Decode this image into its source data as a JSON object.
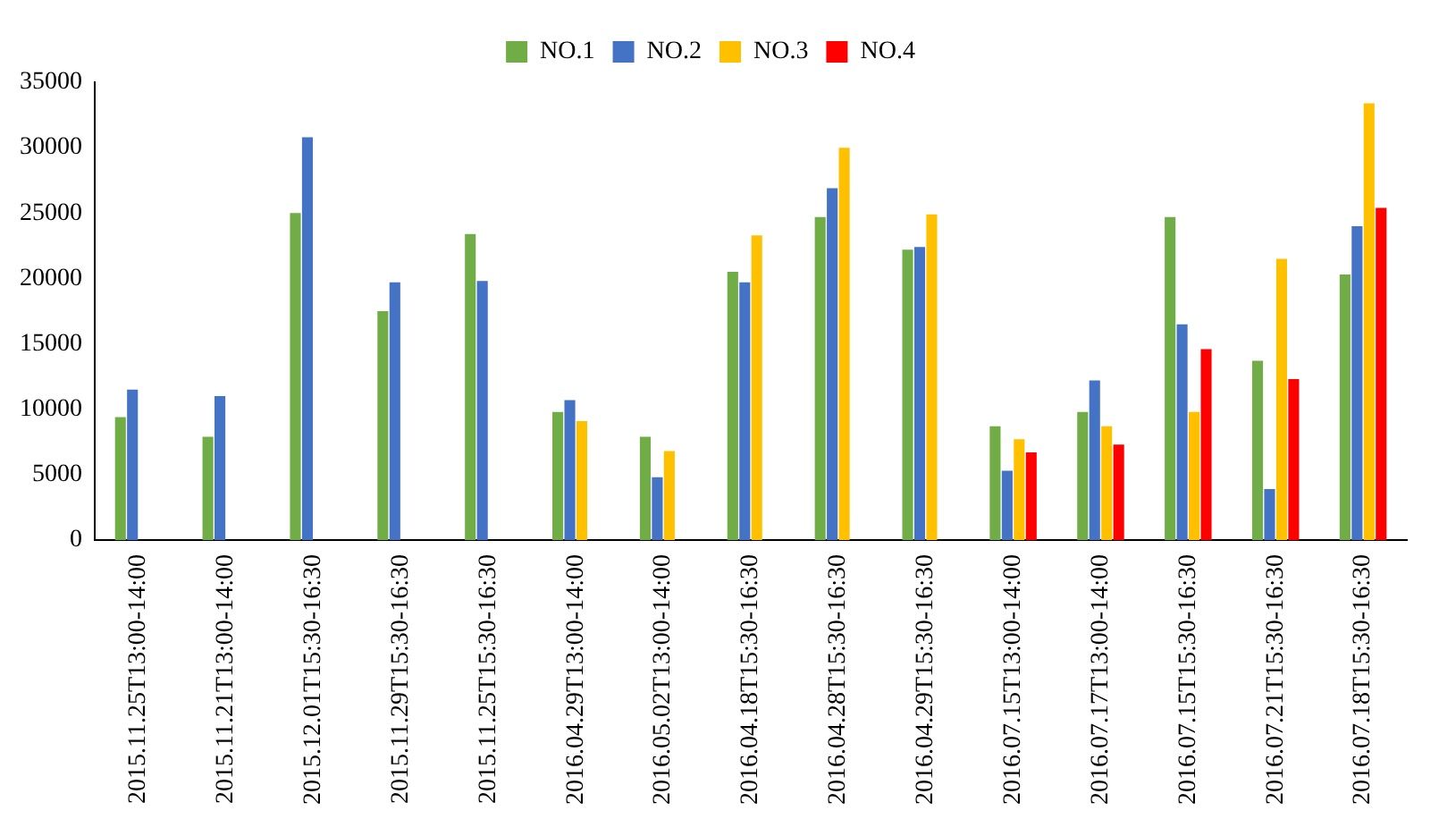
{
  "chart_data": {
    "type": "bar",
    "categories": [
      "2015.11.25T13:00-14:00",
      "2015.11.21T13:00-14:00",
      "2015.12.01T15:30-16:30",
      "2015.11.29T15:30-16:30",
      "2015.11.25T15:30-16:30",
      "2016.04.29T13:00-14:00",
      "2016.05.02T13:00-14:00",
      "2016.04.18T15:30-16:30",
      "2016.04.28T15:30-16:30",
      "2016.04.29T15:30-16:30",
      "2016.07.15T13:00-14:00",
      "2016.07.17T13:00-14:00",
      "2016.07.15T15:30-16:30",
      "2016.07.21T15:30-16:30",
      "2016.07.18T15:30-16:30"
    ],
    "series": [
      {
        "name": "NO.1",
        "color": "#70ad47",
        "values": [
          9400,
          7900,
          25000,
          17500,
          23400,
          9800,
          7900,
          20500,
          24700,
          22200,
          8700,
          9800,
          24700,
          13700,
          20300
        ]
      },
      {
        "name": "NO.2",
        "color": "#4472c4",
        "values": [
          11500,
          11000,
          30800,
          19700,
          19800,
          10700,
          4800,
          19700,
          26900,
          22400,
          5300,
          12200,
          16500,
          3900,
          24000
        ]
      },
      {
        "name": "NO.3",
        "color": "#ffc000",
        "values": [
          null,
          null,
          null,
          null,
          null,
          9100,
          6800,
          23300,
          30000,
          24900,
          7700,
          8700,
          9800,
          21500,
          33400
        ]
      },
      {
        "name": "NO.4",
        "color": "#ff0000",
        "values": [
          null,
          null,
          null,
          null,
          null,
          null,
          null,
          null,
          null,
          null,
          6700,
          7300,
          14600,
          12300,
          25400
        ]
      }
    ],
    "ylim": [
      0,
      35000
    ],
    "yticks": [
      0,
      5000,
      10000,
      15000,
      20000,
      25000,
      30000,
      35000
    ],
    "grid": false,
    "legend": "top"
  }
}
